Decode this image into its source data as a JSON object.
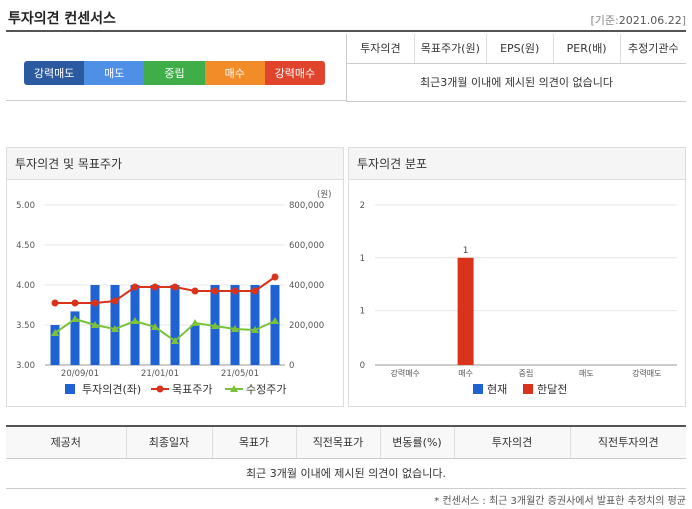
{
  "header": {
    "title": "투자의견 컨센서스",
    "ref_prefix": "[기준:",
    "ref_date": "2021.06.22",
    "ref_suffix": "]"
  },
  "gauge": {
    "labels": [
      "강력매도",
      "매도",
      "중립",
      "매수",
      "강력매수"
    ]
  },
  "opinion_table": {
    "columns": [
      "투자의견",
      "목표주가(원)",
      "EPS(원)",
      "PER(배)",
      "추정기관수"
    ],
    "empty_message": "최근3개월 이내에 제시된 의견이 없습니다"
  },
  "left_panel": {
    "title": "투자의견 및 목표주가"
  },
  "right_panel": {
    "title": "투자의견 분포"
  },
  "chart_data": [
    {
      "type": "bar",
      "title": "투자의견 및 목표주가",
      "y_left": {
        "ticks": [
          "5.00",
          "4.50",
          "4.00",
          "3.50",
          "3.00"
        ],
        "range": [
          3.0,
          5.0
        ]
      },
      "y_right": {
        "unit": "(원)",
        "ticks": [
          "800,000",
          "600,000",
          "400,000",
          "200,000",
          "0"
        ],
        "range": [
          0,
          800000
        ]
      },
      "x_tick_labels": [
        "20/09/01",
        "21/01/01",
        "21/05/01"
      ],
      "series": [
        {
          "name": "투자의견(좌)",
          "color": "#1f62d4",
          "values": [
            3.5,
            3.67,
            4.0,
            4.0,
            4.0,
            4.0,
            4.0,
            3.5,
            4.0,
            4.0,
            4.0,
            4.0
          ]
        },
        {
          "name": "목표주가",
          "color": "#d9331c",
          "values": [
            310000,
            310000,
            310000,
            320000,
            390000,
            390000,
            390000,
            370000,
            370000,
            370000,
            370000,
            440000
          ]
        },
        {
          "name": "수정주가",
          "color": "#7ac23b",
          "values": [
            160000,
            230000,
            200000,
            180000,
            220000,
            190000,
            120000,
            210000,
            195000,
            180000,
            175000,
            220000
          ]
        }
      ]
    },
    {
      "type": "bar",
      "title": "투자의견 분포",
      "y_ticks": [
        "2",
        "1",
        "1",
        "0"
      ],
      "ylim": [
        0,
        2
      ],
      "categories": [
        "강력매수",
        "매수",
        "중립",
        "매도",
        "강력매도"
      ],
      "series": [
        {
          "name": "현재",
          "color": "#1f62d4",
          "values": [
            0,
            0,
            0,
            0,
            0
          ]
        },
        {
          "name": "한달전",
          "color": "#d9331c",
          "values": [
            0,
            1,
            0,
            0,
            0
          ]
        }
      ],
      "data_labels": [
        "1"
      ]
    }
  ],
  "provider_table": {
    "columns": [
      "제공처",
      "최종일자",
      "목표가",
      "직전목표가",
      "변동률(%)",
      "투자의견",
      "직전투자의견"
    ],
    "empty_message": "최근 3개월 이내에 제시된 의견이 없습니다."
  },
  "footnote": "* 컨센서스 : 최근 3개월간 증권사에서 발표한 추정치의 평균"
}
